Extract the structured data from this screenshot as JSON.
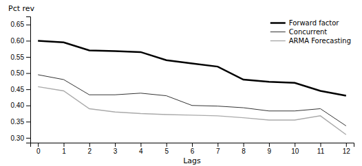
{
  "chart_data": {
    "type": "line",
    "xlabel": "Lags",
    "ylabel": "Pct rev",
    "x": [
      0,
      1,
      2,
      3,
      4,
      5,
      6,
      7,
      8,
      9,
      10,
      11,
      12
    ],
    "series": [
      {
        "name": "Forward factor",
        "color": "#000000",
        "values": [
          0.6,
          0.595,
          0.57,
          0.568,
          0.565,
          0.54,
          0.53,
          0.52,
          0.48,
          0.473,
          0.47,
          0.445,
          0.43
        ]
      },
      {
        "name": "Concurrent",
        "color": "#333333",
        "values": [
          0.495,
          0.48,
          0.433,
          0.433,
          0.438,
          0.43,
          0.4,
          0.398,
          0.393,
          0.383,
          0.383,
          0.39,
          0.337
        ]
      },
      {
        "name": "ARMA Forecasting",
        "color": "#aaaaaa",
        "values": [
          0.458,
          0.445,
          0.39,
          0.38,
          0.375,
          0.372,
          0.37,
          0.368,
          0.362,
          0.355,
          0.355,
          0.368,
          0.31
        ]
      }
    ],
    "xlim": [
      -0.3,
      12.3
    ],
    "xticks": [
      0,
      1,
      2,
      3,
      4,
      5,
      6,
      7,
      8,
      9,
      10,
      11,
      12
    ],
    "ylim": [
      0.285,
      0.675
    ],
    "yticks": [
      {
        "value": 0.3,
        "label": "0.30"
      },
      0.35,
      {
        "value": 0.4,
        "label": "0.40"
      },
      0.45,
      {
        "value": 0.5,
        "label": "0.50"
      },
      0.55,
      {
        "value": 0.6,
        "label": "0.60"
      },
      0.65
    ],
    "grid": false,
    "legend": "upper right"
  }
}
